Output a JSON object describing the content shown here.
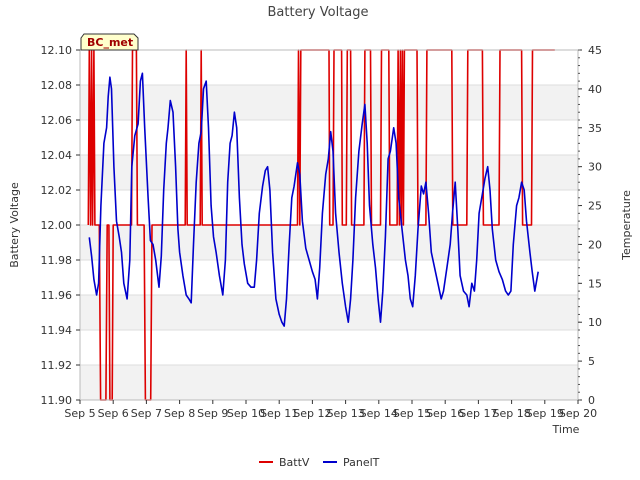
{
  "chart_data": {
    "type": "line",
    "title": "Battery Voltage",
    "xlabel": "Time",
    "ylabel": "Battery Voltage",
    "y2label": "Temperature",
    "station_badge": "BC_met",
    "x_ticks": [
      "Sep 5",
      "Sep 6",
      "Sep 7",
      "Sep 8",
      "Sep 9",
      "Sep 10",
      "Sep 11",
      "Sep 12",
      "Sep 13",
      "Sep 14",
      "Sep 15",
      "Sep 16",
      "Sep 17",
      "Sep 18",
      "Sep 19",
      "Sep 20"
    ],
    "xlim": [
      5,
      20
    ],
    "ylim": [
      11.9,
      12.1
    ],
    "y_ticks": [
      "11.90",
      "11.92",
      "11.94",
      "11.96",
      "11.98",
      "12.00",
      "12.02",
      "12.04",
      "12.06",
      "12.08",
      "12.10"
    ],
    "y2lim": [
      0,
      45
    ],
    "y2_ticks": [
      "0",
      "5",
      "10",
      "15",
      "20",
      "25",
      "30",
      "35",
      "40",
      "45"
    ],
    "grid": true,
    "legend_position": "bottom",
    "series": [
      {
        "name": "BattV",
        "axis": "left",
        "color": "#dd0000",
        "x_unit": "day of September",
        "points": [
          [
            5.25,
            12.0
          ],
          [
            5.28,
            12.1
          ],
          [
            5.32,
            12.0
          ],
          [
            5.35,
            12.1
          ],
          [
            5.38,
            12.0
          ],
          [
            5.42,
            12.1
          ],
          [
            5.45,
            12.0
          ],
          [
            5.58,
            12.0
          ],
          [
            5.62,
            11.9
          ],
          [
            5.78,
            11.9
          ],
          [
            5.82,
            12.0
          ],
          [
            5.87,
            12.0
          ],
          [
            5.9,
            11.9
          ],
          [
            5.97,
            11.9
          ],
          [
            6.0,
            12.0
          ],
          [
            6.55,
            12.0
          ],
          [
            6.58,
            12.1
          ],
          [
            6.7,
            12.1
          ],
          [
            6.73,
            12.0
          ],
          [
            6.93,
            12.0
          ],
          [
            6.97,
            11.9
          ],
          [
            7.13,
            11.9
          ],
          [
            7.17,
            12.0
          ],
          [
            8.17,
            12.0
          ],
          [
            8.2,
            12.1
          ],
          [
            8.23,
            12.0
          ],
          [
            8.62,
            12.0
          ],
          [
            8.65,
            12.1
          ],
          [
            8.68,
            12.0
          ],
          [
            11.55,
            12.0
          ],
          [
            11.58,
            12.1
          ],
          [
            11.62,
            12.0
          ],
          [
            11.65,
            12.1
          ],
          [
            12.5,
            12.1
          ],
          [
            12.52,
            12.0
          ],
          [
            12.62,
            12.0
          ],
          [
            12.65,
            12.1
          ],
          [
            12.88,
            12.1
          ],
          [
            12.9,
            12.0
          ],
          [
            13.02,
            12.0
          ],
          [
            13.05,
            12.1
          ],
          [
            13.15,
            12.1
          ],
          [
            13.18,
            12.0
          ],
          [
            13.55,
            12.0
          ],
          [
            13.58,
            12.1
          ],
          [
            13.75,
            12.1
          ],
          [
            13.78,
            12.0
          ],
          [
            14.05,
            12.0
          ],
          [
            14.08,
            12.1
          ],
          [
            14.3,
            12.1
          ],
          [
            14.33,
            12.0
          ],
          [
            14.55,
            12.0
          ],
          [
            14.58,
            12.1
          ],
          [
            14.62,
            12.0
          ],
          [
            14.65,
            12.1
          ],
          [
            14.68,
            12.0
          ],
          [
            14.71,
            12.1
          ],
          [
            14.74,
            12.0
          ],
          [
            14.77,
            12.1
          ],
          [
            15.15,
            12.1
          ],
          [
            15.18,
            12.0
          ],
          [
            15.42,
            12.0
          ],
          [
            15.45,
            12.1
          ],
          [
            16.2,
            12.1
          ],
          [
            16.23,
            12.0
          ],
          [
            16.65,
            12.0
          ],
          [
            16.68,
            12.1
          ],
          [
            17.12,
            12.1
          ],
          [
            17.15,
            12.0
          ],
          [
            17.62,
            12.0
          ],
          [
            17.65,
            12.1
          ],
          [
            18.3,
            12.1
          ],
          [
            18.33,
            12.0
          ],
          [
            18.6,
            12.0
          ],
          [
            18.63,
            12.1
          ],
          [
            19.3,
            12.1
          ]
        ]
      },
      {
        "name": "PanelT",
        "axis": "right",
        "color": "#0000cc",
        "x_unit": "day of September",
        "points": [
          [
            5.28,
            20.9
          ],
          [
            5.35,
            18.5
          ],
          [
            5.42,
            15.5
          ],
          [
            5.5,
            13.5
          ],
          [
            5.56,
            15.0
          ],
          [
            5.63,
            25.0
          ],
          [
            5.72,
            33.0
          ],
          [
            5.8,
            35.0
          ],
          [
            5.85,
            39.0
          ],
          [
            5.9,
            41.5
          ],
          [
            5.95,
            40.0
          ],
          [
            6.02,
            30.0
          ],
          [
            6.1,
            23.0
          ],
          [
            6.18,
            21.0
          ],
          [
            6.25,
            19.0
          ],
          [
            6.32,
            15.0
          ],
          [
            6.42,
            13.0
          ],
          [
            6.5,
            18.0
          ],
          [
            6.56,
            30.0
          ],
          [
            6.65,
            34.0
          ],
          [
            6.75,
            35.5
          ],
          [
            6.82,
            41.0
          ],
          [
            6.88,
            42.0
          ],
          [
            6.95,
            35.0
          ],
          [
            7.05,
            26.0
          ],
          [
            7.12,
            20.5
          ],
          [
            7.2,
            20.0
          ],
          [
            7.28,
            18.0
          ],
          [
            7.38,
            14.5
          ],
          [
            7.45,
            18.5
          ],
          [
            7.52,
            27.0
          ],
          [
            7.6,
            33.0
          ],
          [
            7.65,
            35.0
          ],
          [
            7.72,
            38.5
          ],
          [
            7.8,
            37.0
          ],
          [
            7.88,
            30.0
          ],
          [
            7.95,
            22.0
          ],
          [
            8.0,
            19.0
          ],
          [
            8.1,
            16.0
          ],
          [
            8.2,
            13.5
          ],
          [
            8.28,
            13.0
          ],
          [
            8.35,
            12.5
          ],
          [
            8.42,
            20.0
          ],
          [
            8.5,
            28.0
          ],
          [
            8.58,
            33.0
          ],
          [
            8.65,
            34.5
          ],
          [
            8.72,
            40.0
          ],
          [
            8.8,
            41.0
          ],
          [
            8.87,
            35.0
          ],
          [
            8.95,
            25.0
          ],
          [
            9.02,
            21.0
          ],
          [
            9.1,
            19.0
          ],
          [
            9.2,
            16.0
          ],
          [
            9.3,
            13.5
          ],
          [
            9.38,
            18.0
          ],
          [
            9.45,
            28.0
          ],
          [
            9.52,
            33.0
          ],
          [
            9.58,
            34.0
          ],
          [
            9.65,
            37.0
          ],
          [
            9.72,
            35.0
          ],
          [
            9.8,
            26.0
          ],
          [
            9.88,
            20.0
          ],
          [
            9.95,
            17.5
          ],
          [
            10.05,
            15.0
          ],
          [
            10.15,
            14.5
          ],
          [
            10.25,
            14.5
          ],
          [
            10.32,
            18.0
          ],
          [
            10.4,
            24.0
          ],
          [
            10.5,
            27.5
          ],
          [
            10.58,
            29.5
          ],
          [
            10.65,
            30.0
          ],
          [
            10.72,
            27.0
          ],
          [
            10.8,
            19.0
          ],
          [
            10.9,
            13.0
          ],
          [
            11.0,
            11.0
          ],
          [
            11.08,
            10.0
          ],
          [
            11.15,
            9.5
          ],
          [
            11.22,
            13.0
          ],
          [
            11.3,
            20.0
          ],
          [
            11.38,
            26.0
          ],
          [
            11.45,
            27.5
          ],
          [
            11.55,
            30.5
          ],
          [
            11.62,
            29.0
          ],
          [
            11.7,
            23.0
          ],
          [
            11.8,
            19.5
          ],
          [
            11.9,
            18.0
          ],
          [
            12.0,
            16.5
          ],
          [
            12.08,
            15.5
          ],
          [
            12.15,
            13.0
          ],
          [
            12.22,
            17.0
          ],
          [
            12.3,
            24.0
          ],
          [
            12.4,
            29.0
          ],
          [
            12.48,
            31.0
          ],
          [
            12.55,
            34.5
          ],
          [
            12.62,
            32.0
          ],
          [
            12.7,
            24.0
          ],
          [
            12.8,
            19.0
          ],
          [
            12.9,
            15.0
          ],
          [
            13.0,
            12.0
          ],
          [
            13.08,
            10.0
          ],
          [
            13.15,
            13.0
          ],
          [
            13.22,
            18.0
          ],
          [
            13.3,
            26.0
          ],
          [
            13.4,
            32.0
          ],
          [
            13.5,
            35.5
          ],
          [
            13.58,
            38.0
          ],
          [
            13.65,
            33.0
          ],
          [
            13.72,
            25.0
          ],
          [
            13.82,
            20.0
          ],
          [
            13.9,
            17.0
          ],
          [
            13.98,
            13.0
          ],
          [
            14.05,
            10.0
          ],
          [
            14.12,
            14.0
          ],
          [
            14.2,
            21.0
          ],
          [
            14.28,
            31.0
          ],
          [
            14.35,
            32.0
          ],
          [
            14.45,
            35.0
          ],
          [
            14.52,
            33.0
          ],
          [
            14.6,
            26.0
          ],
          [
            14.7,
            22.0
          ],
          [
            14.8,
            18.0
          ],
          [
            14.88,
            16.0
          ],
          [
            14.95,
            13.0
          ],
          [
            15.02,
            12.0
          ],
          [
            15.1,
            16.0
          ],
          [
            15.18,
            22.0
          ],
          [
            15.28,
            27.5
          ],
          [
            15.35,
            26.5
          ],
          [
            15.42,
            28.0
          ],
          [
            15.5,
            24.0
          ],
          [
            15.58,
            19.0
          ],
          [
            15.68,
            17.0
          ],
          [
            15.78,
            15.0
          ],
          [
            15.88,
            13.0
          ],
          [
            15.95,
            14.0
          ],
          [
            16.05,
            17.0
          ],
          [
            16.15,
            20.0
          ],
          [
            16.22,
            24.0
          ],
          [
            16.3,
            28.0
          ],
          [
            16.38,
            22.0
          ],
          [
            16.45,
            16.0
          ],
          [
            16.55,
            14.0
          ],
          [
            16.65,
            13.5
          ],
          [
            16.72,
            12.0
          ],
          [
            16.8,
            15.0
          ],
          [
            16.88,
            14.0
          ],
          [
            16.95,
            18.0
          ],
          [
            17.02,
            24.0
          ],
          [
            17.12,
            26.5
          ],
          [
            17.2,
            28.5
          ],
          [
            17.28,
            30.0
          ],
          [
            17.35,
            27.0
          ],
          [
            17.42,
            22.0
          ],
          [
            17.52,
            18.0
          ],
          [
            17.62,
            16.5
          ],
          [
            17.72,
            15.5
          ],
          [
            17.82,
            14.0
          ],
          [
            17.9,
            13.5
          ],
          [
            17.98,
            14.0
          ],
          [
            18.05,
            20.0
          ],
          [
            18.15,
            25.0
          ],
          [
            18.22,
            26.0
          ],
          [
            18.3,
            28.0
          ],
          [
            18.38,
            27.0
          ],
          [
            18.45,
            23.0
          ],
          [
            18.55,
            19.0
          ],
          [
            18.62,
            16.5
          ],
          [
            18.7,
            14.0
          ],
          [
            18.8,
            16.5
          ]
        ]
      }
    ]
  }
}
